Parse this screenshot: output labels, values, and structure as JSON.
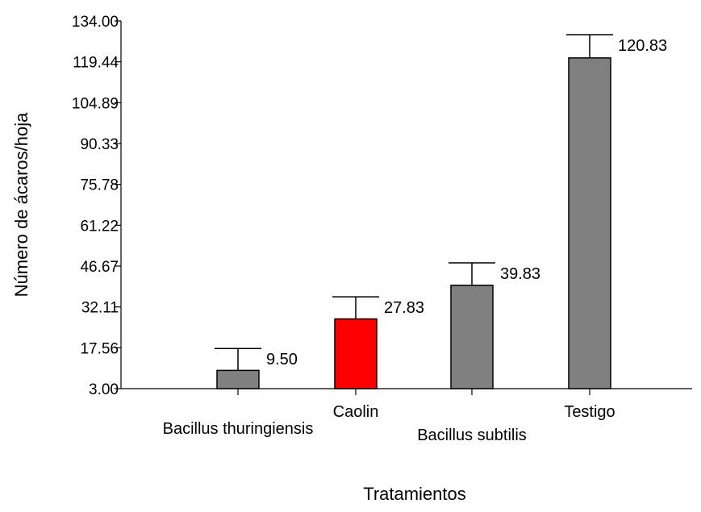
{
  "chart_data": {
    "type": "bar",
    "title": "",
    "xlabel": "Tratamientos",
    "ylabel": "Número de ácaros/hoja",
    "ylim": [
      3.0,
      134.0
    ],
    "yticks": [
      "3.00",
      "17.56",
      "32.11",
      "46.67",
      "61.22",
      "75.78",
      "90.33",
      "104.89",
      "119.44",
      "134.00"
    ],
    "categories": [
      "Bacillus thuringiensis",
      "Caolin",
      "Bacillus subtilis",
      "Testigo"
    ],
    "values": [
      9.5,
      27.83,
      39.83,
      120.83
    ],
    "value_labels": [
      "9.50",
      "27.83",
      "39.83",
      "120.83"
    ],
    "error_upper": [
      17.3,
      35.7,
      47.8,
      129.1
    ],
    "colors": [
      "#808080",
      "#ff0000",
      "#808080",
      "#808080"
    ],
    "grid": false,
    "legend": "none"
  }
}
